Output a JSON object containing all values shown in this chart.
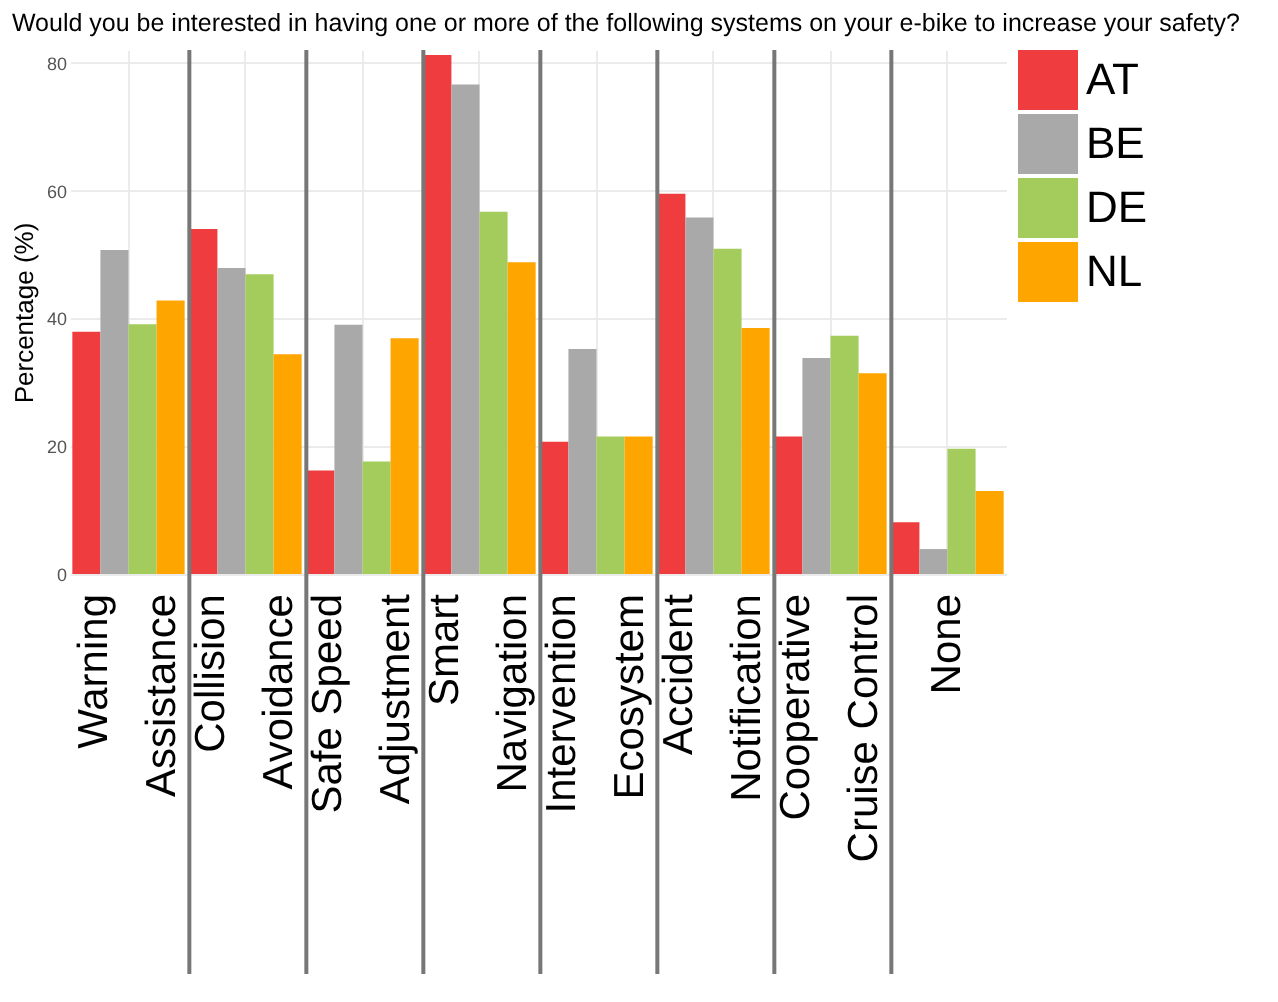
{
  "chart_data": {
    "type": "bar",
    "title": "Would you be interested in having one or more of the following systems on your e-bike to increase your safety?",
    "ylabel": "Percentage (%)",
    "categories": [
      "Warning\nAssistance",
      "Collision\nAvoidance",
      "Safe Speed\nAdjustment",
      "Smart\nNavigation",
      "Intervention\nEcosystem",
      "Accident\nNotification",
      "Cooperative\nCruise Control",
      "None"
    ],
    "series": [
      {
        "name": "AT",
        "color": "#ef3c3f",
        "values": [
          37.9,
          54.0,
          16.2,
          81.2,
          20.7,
          59.5,
          21.5,
          8.1
        ]
      },
      {
        "name": "BE",
        "color": "#a9a9a9",
        "values": [
          50.7,
          47.9,
          39.0,
          76.6,
          35.2,
          55.8,
          33.8,
          3.9
        ]
      },
      {
        "name": "DE",
        "color": "#a3cc5c",
        "values": [
          39.1,
          46.9,
          17.6,
          56.7,
          21.5,
          50.9,
          37.3,
          19.6
        ]
      },
      {
        "name": "NL",
        "color": "#ffa500",
        "values": [
          42.8,
          34.4,
          36.9,
          48.8,
          21.5,
          38.5,
          31.4,
          13.0
        ]
      }
    ],
    "ylim": [
      0,
      82
    ],
    "yticks": [
      0,
      20,
      40,
      60,
      80
    ],
    "grid": true,
    "legend": "top right"
  }
}
